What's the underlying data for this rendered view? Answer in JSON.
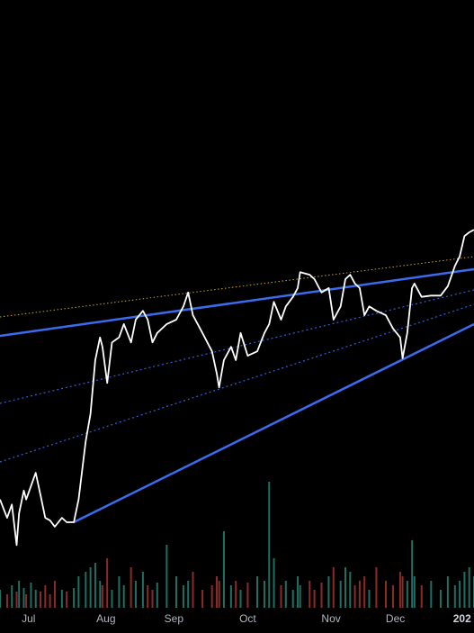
{
  "chart_data": {
    "type": "line",
    "x": [
      0,
      3,
      5,
      7,
      8,
      10,
      11,
      13,
      15,
      17,
      19,
      21,
      23,
      26,
      28,
      31,
      33,
      36,
      38,
      40,
      42,
      43,
      45,
      47,
      50,
      52,
      55,
      57,
      60,
      62,
      64,
      66,
      70,
      74,
      77,
      79,
      81,
      85,
      89,
      91,
      92,
      94,
      97,
      99,
      101,
      104,
      108,
      111,
      113,
      115,
      118,
      120,
      123,
      125,
      126,
      130,
      132,
      135,
      138,
      140,
      143,
      145,
      147,
      149,
      151,
      153,
      155,
      158,
      162,
      165,
      168,
      169,
      171,
      173,
      174,
      177,
      181,
      185,
      188,
      191,
      193,
      195,
      197,
      199
    ],
    "series": [
      {
        "color": "#ffffff",
        "values": [
          21.1,
          18.2,
          20.3,
          13.9,
          18.9,
          22.5,
          21.1,
          23.2,
          25.3,
          21.8,
          18.2,
          17.8,
          16.8,
          18.2,
          17.5,
          17.5,
          21.1,
          30.3,
          34.6,
          43.1,
          46.7,
          45.2,
          39.5,
          45.9,
          46.7,
          48.8,
          45.9,
          49.5,
          50.9,
          49.5,
          45.9,
          47.4,
          48.8,
          49.5,
          51.6,
          53.8,
          50.2,
          47.4,
          44.5,
          41.0,
          38.8,
          43.1,
          45.2,
          43.1,
          47.4,
          43.8,
          44.5,
          47.4,
          48.8,
          52.3,
          49.5,
          51.6,
          53.1,
          54.5,
          57.0,
          56.6,
          55.9,
          53.8,
          54.5,
          49.5,
          51.6,
          55.9,
          56.6,
          55.2,
          54.5,
          50.2,
          51.6,
          50.9,
          50.2,
          48.1,
          46.7,
          43.4,
          47.4,
          54.5,
          55.2,
          53.1,
          53.3,
          53.3,
          54.8,
          58.0,
          59.5,
          62.7,
          63.3,
          63.7
        ]
      },
      {
        "axis": "y2",
        "up_color": "#1f6f62",
        "down_color": "#8c2a2a",
        "values": [
          20,
          15,
          25,
          18,
          30,
          22,
          15,
          28,
          20,
          18,
          25,
          15,
          30,
          20,
          18,
          22,
          35,
          40,
          45,
          50,
          30,
          25,
          55,
          20,
          35,
          25,
          45,
          30,
          40,
          25,
          20,
          28,
          70,
          35,
          25,
          30,
          40,
          20,
          25,
          35,
          30,
          85,
          25,
          30,
          20,
          28,
          35,
          30,
          140,
          55,
          25,
          30,
          20,
          35,
          25,
          30,
          20,
          28,
          35,
          45,
          30,
          45,
          40,
          25,
          30,
          35,
          20,
          45,
          30,
          25,
          40,
          35,
          30,
          75,
          35,
          25,
          30,
          20,
          35,
          25,
          30,
          40,
          45,
          35
        ]
      }
    ],
    "xlim": [
      0,
      199
    ],
    "ylim": [
      0,
      100
    ],
    "y2lim": [
      0,
      150
    ],
    "xticks": [
      {
        "value": 12,
        "label": "Jul"
      },
      {
        "value": 44.5,
        "label": "Aug"
      },
      {
        "value": 73,
        "label": "Sep"
      },
      {
        "value": 104,
        "label": "Oct"
      },
      {
        "value": 139,
        "label": "Nov"
      },
      {
        "value": 166,
        "label": "Dec"
      },
      {
        "value": 194,
        "label": "202"
      }
    ]
  }
}
